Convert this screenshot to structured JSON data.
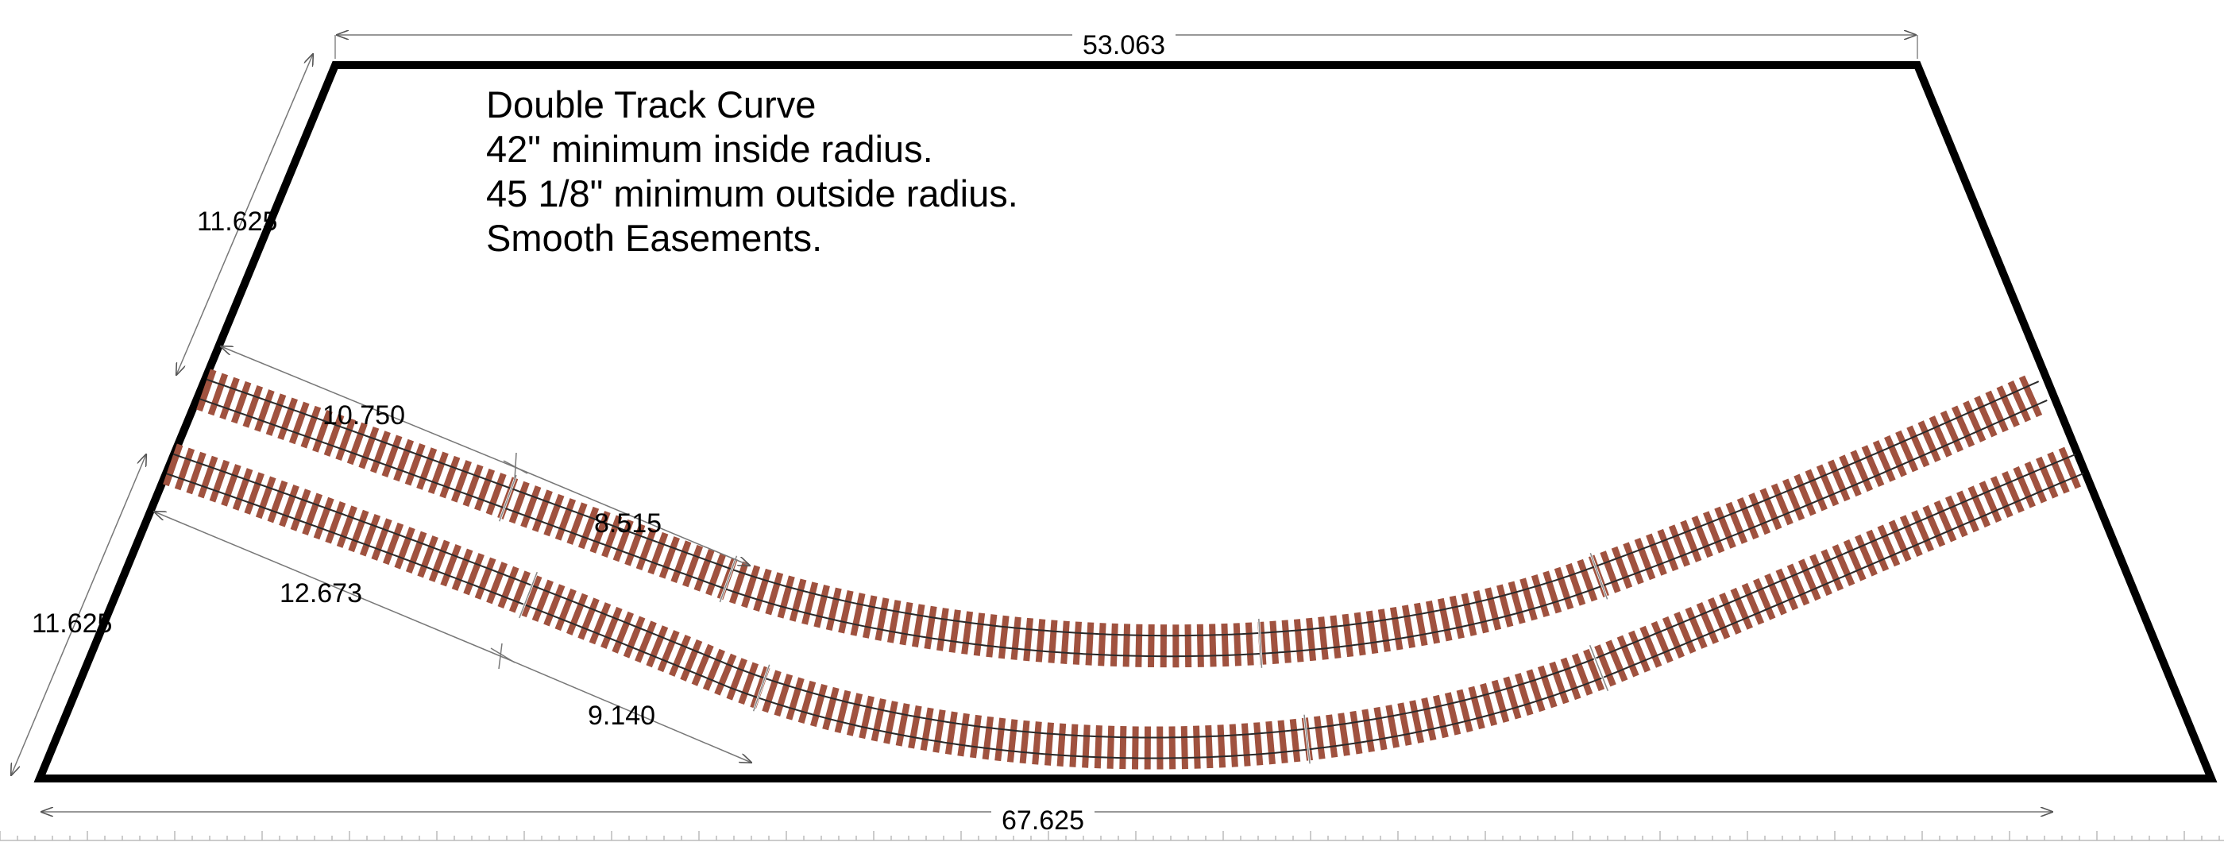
{
  "notes": [
    "Double Track Curve",
    "42\" minimum inside radius.",
    "45 1/8\" minimum outside radius.",
    "Smooth Easements."
  ],
  "dimensions": {
    "top": "53.063",
    "bottom": "67.625",
    "left_upper": "11.625",
    "left_lower": "11.625",
    "inner_straight": "10.750",
    "inner_easement": "8.515",
    "outer_straight": "12.673",
    "outer_easement": "9.140"
  },
  "colors": {
    "outline": "#000000",
    "tie": "#a0523f",
    "rail": "#2a2a2a",
    "dimension_line": "#666666"
  }
}
